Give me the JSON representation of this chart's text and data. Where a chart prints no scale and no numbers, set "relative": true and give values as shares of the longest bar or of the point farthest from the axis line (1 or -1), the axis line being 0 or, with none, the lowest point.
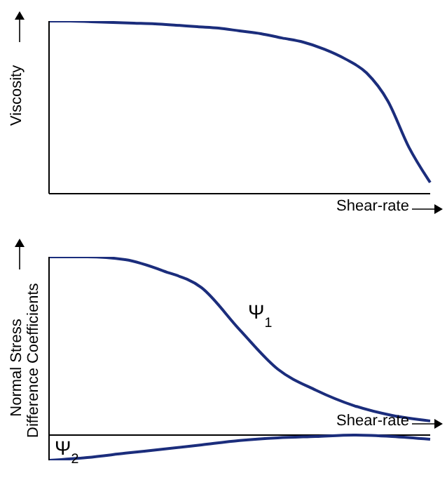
{
  "chart_data": [
    {
      "type": "line",
      "relative": true,
      "ylabel": "Viscosity",
      "xlabel": "Shear-rate",
      "categories": [
        null,
        null,
        null,
        null,
        null,
        null,
        null,
        null,
        null,
        null,
        null,
        null,
        null,
        null,
        null,
        null,
        null,
        null,
        null
      ],
      "series": [
        {
          "color": "#1b2d7c",
          "values": [
            1,
            1,
            0.996,
            0.992,
            0.988,
            0.984,
            0.976,
            0.967,
            0.959,
            0.943,
            0.927,
            0.902,
            0.878,
            0.837,
            0.78,
            0.699,
            0.537,
            0.268,
            0.065
          ]
        }
      ]
    },
    {
      "type": "line",
      "relative": true,
      "ylabel": "Normal Stress Difference Coefficients",
      "xlabel": "Shear-rate",
      "categories": [
        null,
        null,
        null,
        null,
        null,
        null,
        null,
        null,
        null,
        null,
        null
      ],
      "series": [
        {
          "name": "Ψ$_{1}$",
          "color": "#1b2d7c",
          "values": [
            1,
            1,
            0.984,
            0.921,
            0.827,
            0.591,
            0.37,
            0.252,
            0.165,
            0.11,
            0.079
          ]
        },
        {
          "name": "Ψ$_{2}$",
          "color": "#1b2d7c",
          "values": [
            -0.142,
            -0.126,
            -0.102,
            -0.079,
            -0.055,
            -0.031,
            -0.016,
            -0.008,
            0,
            -0.008,
            -0.024
          ]
        }
      ]
    }
  ]
}
